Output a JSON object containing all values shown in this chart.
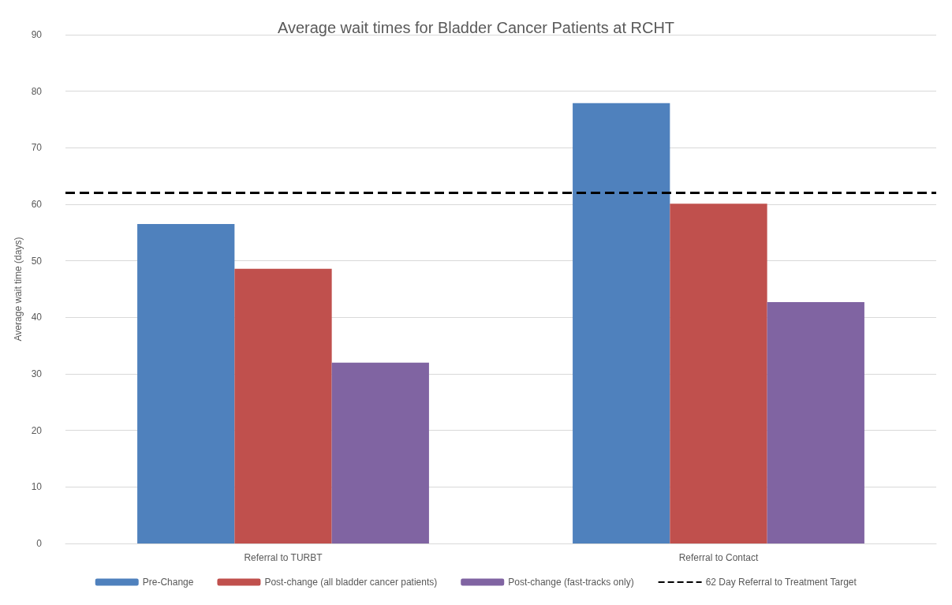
{
  "chart_data": {
    "type": "bar",
    "title": "Average wait times for Bladder Cancer Patients at RCHT",
    "ylabel": "Average wait time (days)",
    "categories": [
      "Referral to TURBT",
      "Referral to Contact"
    ],
    "series": [
      {
        "name": "Pre-Change",
        "color": "#4f81bd",
        "values": [
          56.5,
          77.9
        ]
      },
      {
        "name": "Post-change (all bladder cancer patients)",
        "color": "#c0504d",
        "values": [
          48.6,
          60.1
        ]
      },
      {
        "name": "Post-change (fast-tracks only)",
        "color": "#8064a2",
        "values": [
          32.0,
          42.7
        ]
      }
    ],
    "ylim": [
      0,
      90
    ],
    "yticks": [
      0,
      10,
      20,
      30,
      40,
      50,
      60,
      70,
      80,
      90
    ],
    "grid": "y",
    "legend": "bottom",
    "ref_lines": [
      {
        "axis": "y",
        "value": 62,
        "label": "62 Day Referral to Treatment Target",
        "color": "#000000",
        "line_style": "dashed"
      }
    ]
  }
}
